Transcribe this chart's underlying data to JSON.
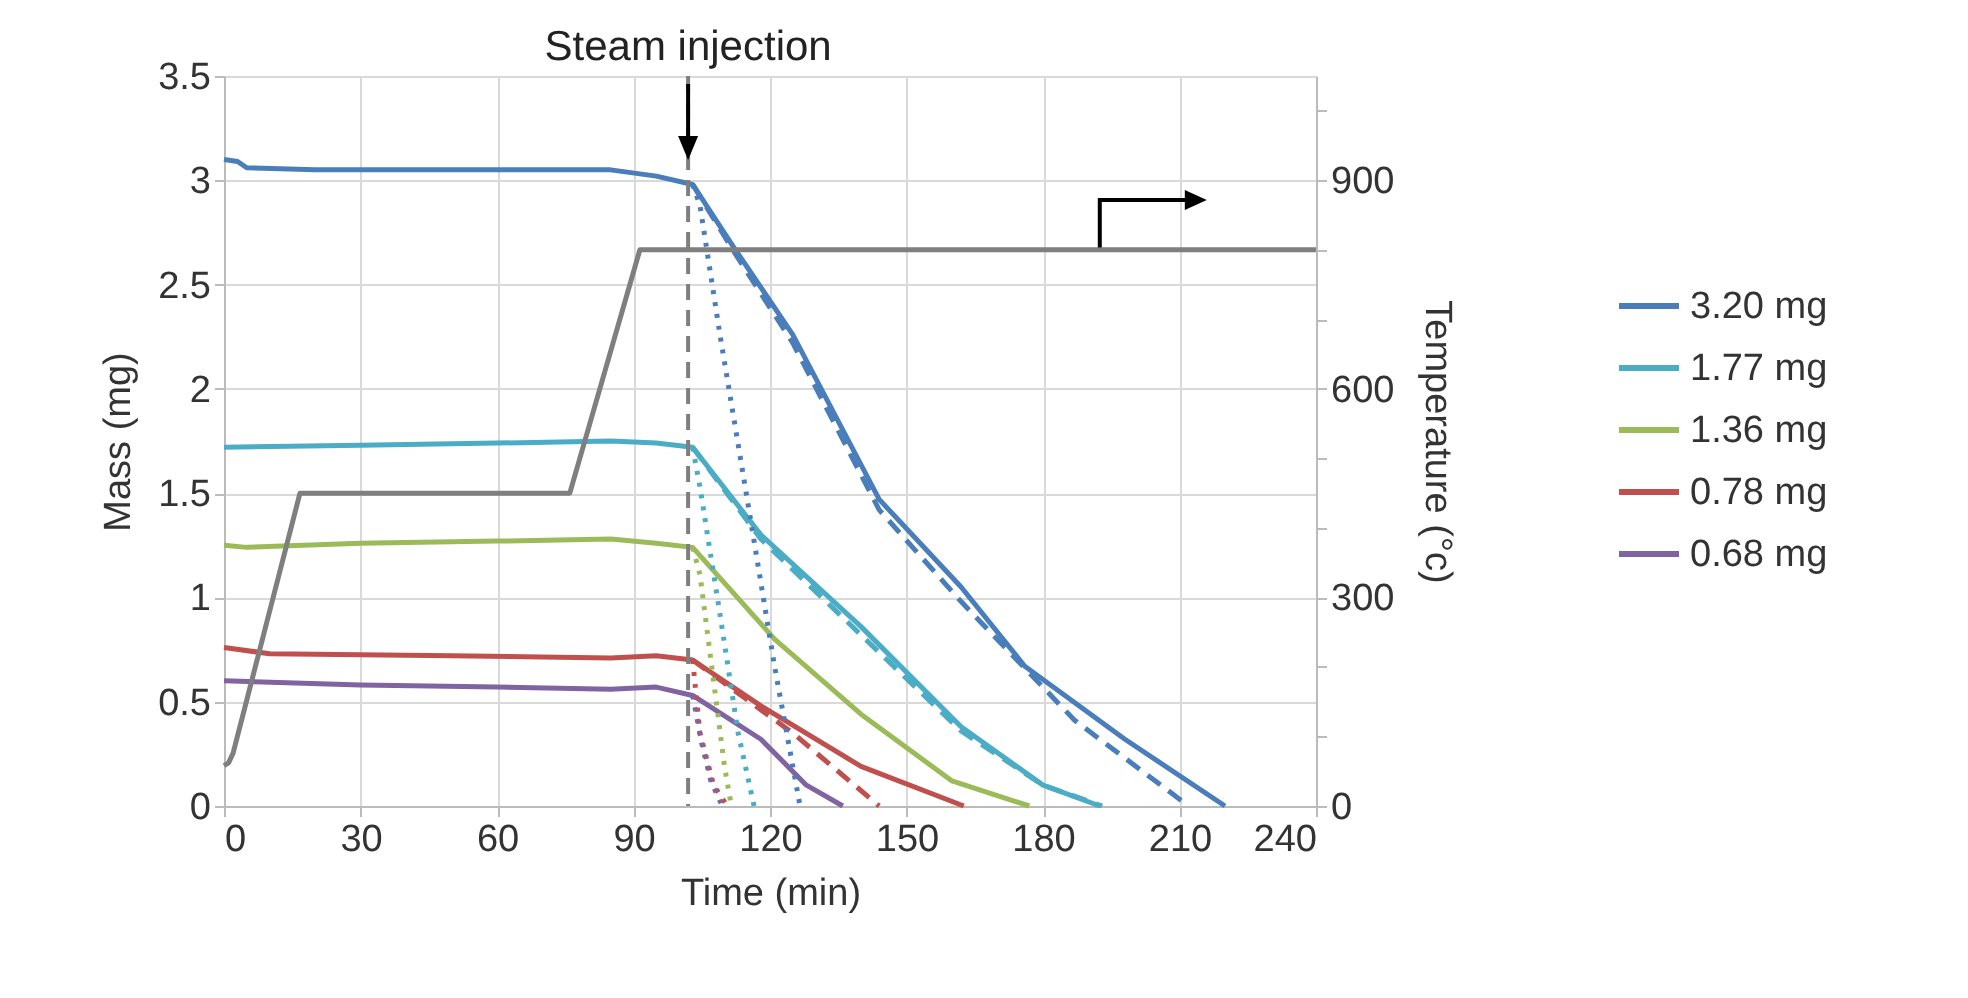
{
  "chart_data": {
    "type": "line",
    "xlabel": "Time (min)",
    "ylabel": "Mass (mg)",
    "y2label": "Temperature (°c)",
    "xlim": [
      0,
      240
    ],
    "xticks": [
      0,
      30,
      60,
      90,
      120,
      150,
      180,
      210,
      240
    ],
    "ylim": [
      0,
      3.5
    ],
    "yticks": [
      0,
      0.5,
      1,
      1.5,
      2,
      2.5,
      3,
      3.5
    ],
    "y2lim": [
      0,
      1050
    ],
    "y2ticks": [
      0,
      {
        "value": 100,
        "label": null
      },
      {
        "value": 200,
        "label": null
      },
      300,
      {
        "value": 400,
        "label": null
      },
      {
        "value": 500,
        "label": null
      },
      600,
      {
        "value": 700,
        "label": null
      },
      {
        "value": 800,
        "label": null
      },
      900,
      {
        "value": 1000,
        "label": null
      }
    ],
    "grid": true,
    "legend": "right",
    "ref_lines": [
      {
        "axis": "x",
        "value": 102,
        "label": "Steam injection",
        "color": "#7f7f7f",
        "line_style": "dashed"
      }
    ],
    "series": [
      {
        "name": "3.20 mg",
        "color": "#4a7ebb",
        "line_style": "solid",
        "x": [
          0,
          3,
          5,
          20,
          50,
          85,
          95,
          103,
          112,
          125,
          144,
          162,
          176,
          198,
          220
        ],
        "values": [
          3.1,
          3.09,
          3.06,
          3.05,
          3.05,
          3.05,
          3.02,
          2.98,
          2.68,
          2.26,
          1.47,
          1.05,
          0.67,
          0.32,
          0
        ]
      },
      {
        "name": "1.77 mg",
        "color": "#4bacc6",
        "line_style": "solid",
        "x": [
          0,
          30,
          60,
          85,
          95,
          103,
          118,
          140,
          162,
          180,
          192.5
        ],
        "values": [
          1.72,
          1.73,
          1.74,
          1.75,
          1.74,
          1.72,
          1.3,
          0.86,
          0.38,
          0.1,
          0
        ]
      },
      {
        "name": "1.36 mg",
        "color": "#9bbb59",
        "line_style": "solid",
        "x": [
          0,
          5,
          30,
          60,
          85,
          95,
          103,
          121,
          140,
          160,
          177
        ],
        "values": [
          1.25,
          1.24,
          1.26,
          1.27,
          1.28,
          1.26,
          1.24,
          0.8,
          0.44,
          0.12,
          0
        ]
      },
      {
        "name": "0.78 mg",
        "color": "#c0504d",
        "line_style": "solid",
        "x": [
          0,
          10,
          50,
          85,
          95,
          103,
          118,
          140,
          162.6
        ],
        "values": [
          0.76,
          0.73,
          0.72,
          0.71,
          0.72,
          0.7,
          0.48,
          0.19,
          0
        ]
      },
      {
        "name": "0.68 mg",
        "color": "#8064a2",
        "line_style": "solid",
        "x": [
          0,
          30,
          60,
          85,
          95,
          103,
          118,
          128,
          136
        ],
        "values": [
          0.6,
          0.58,
          0.57,
          0.56,
          0.57,
          0.53,
          0.32,
          0.1,
          0
        ]
      },
      {
        "color": "#4a7ebb",
        "line_style": "dashed",
        "x": [
          103,
          112,
          125,
          144,
          162,
          187,
          212
        ],
        "values": [
          2.98,
          2.66,
          2.22,
          1.42,
          0.98,
          0.41,
          0
        ]
      },
      {
        "color": "#4bacc6",
        "line_style": "dashed",
        "x": [
          103,
          118,
          140,
          162,
          180,
          193
        ],
        "values": [
          1.72,
          1.28,
          0.82,
          0.36,
          0.1,
          0
        ]
      },
      {
        "color": "#c0504d",
        "line_style": "dashed",
        "x": [
          103,
          125,
          144
        ],
        "values": [
          0.7,
          0.35,
          0
        ]
      },
      {
        "color": "#4a7ebb",
        "line_style": "dotted",
        "x": [
          103,
          104.6,
          109,
          115,
          121,
          126.6
        ],
        "values": [
          2.98,
          2.88,
          2.26,
          1.47,
          0.67,
          0
        ]
      },
      {
        "color": "#4bacc6",
        "line_style": "dotted",
        "x": [
          103,
          104.6,
          109,
          113,
          116.5
        ],
        "values": [
          1.72,
          1.53,
          0.92,
          0.35,
          0
        ]
      },
      {
        "color": "#9bbb59",
        "line_style": "dotted",
        "x": [
          103,
          104.6,
          107.6,
          110,
          111.5
        ],
        "values": [
          1.24,
          1.11,
          0.6,
          0.19,
          0
        ]
      },
      {
        "color": "#c0504d",
        "line_style": "dotted",
        "x": [
          103,
          104.6,
          107.6,
          110.6
        ],
        "values": [
          0.7,
          0.35,
          0.1,
          0
        ]
      },
      {
        "color": "#8064a2",
        "line_style": "dotted",
        "x": [
          103,
          105,
          107,
          109.5
        ],
        "values": [
          0.53,
          0.3,
          0.12,
          0
        ]
      },
      {
        "color": "#7f7f7f",
        "line_style": "solid",
        "axis": "y2",
        "x": [
          0,
          1,
          2,
          16.7,
          76,
          91.4,
          240
        ],
        "values": [
          58,
          62,
          76,
          450,
          450,
          800,
          800
        ]
      }
    ]
  }
}
